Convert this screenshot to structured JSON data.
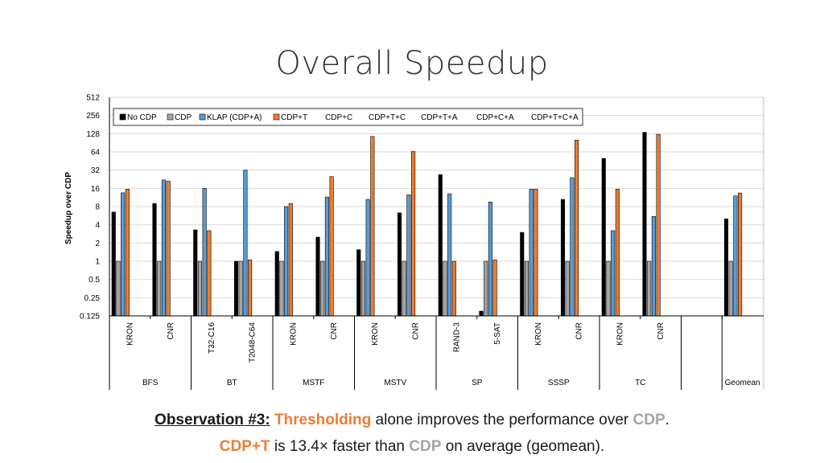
{
  "slide": {
    "title": "Overall Speedup",
    "observation_label": "Observation #3:",
    "line1_highlight": "Thresholding",
    "line1_middle": " alone improves the performance over ",
    "line1_gray": "CDP",
    "line1_end": ".",
    "line2_highlight": "CDP+T",
    "line2_middle": " is 13.4× faster than ",
    "line2_gray": "CDP",
    "line2_end": " on average (geomean)."
  },
  "colors": {
    "No CDP": "#000000",
    "CDP": "#a5a5a5",
    "KLAP (CDP+A)": "#5b9bd5",
    "CDP+T": "#ed7d31"
  },
  "chart_data": {
    "type": "bar",
    "ylabel": "Speedup over CDP",
    "yscale": "log2",
    "ylim": [
      0.125,
      512
    ],
    "yticks": [
      "512",
      "256",
      "128",
      "64",
      "32",
      "16",
      "8",
      "4",
      "2",
      "1",
      "0.5",
      "0.25",
      "0.125"
    ],
    "legend": [
      "No CDP",
      "CDP",
      "KLAP (CDP+A)",
      "CDP+T",
      "CDP+C",
      "CDP+T+C",
      "CDP+T+A",
      "CDP+C+A",
      "CDP+T+C+A"
    ],
    "legend_position": "top-left",
    "grid": true,
    "categories": [
      "KRON",
      "CNR",
      "T32-C16",
      "T2048-C64",
      "KRON",
      "CNR",
      "KRON",
      "CNR",
      "RAND-3",
      "5-SAT",
      "KRON",
      "CNR",
      "KRON",
      "CNR",
      "",
      "Geomean"
    ],
    "groups": [
      {
        "name": "BFS",
        "span": 2
      },
      {
        "name": "BT",
        "span": 2
      },
      {
        "name": "MSTF",
        "span": 2
      },
      {
        "name": "MSTV",
        "span": 2
      },
      {
        "name": "SP",
        "span": 2
      },
      {
        "name": "SSSP",
        "span": 2
      },
      {
        "name": "TC",
        "span": 2
      },
      {
        "name": "",
        "span": 1
      },
      {
        "name": "",
        "span": 1
      }
    ],
    "series": [
      {
        "name": "No CDP",
        "values": [
          6.5,
          9,
          3.3,
          1,
          1.45,
          2.5,
          1.55,
          6.3,
          27,
          0.15,
          3,
          10.5,
          50,
          135,
          null,
          5
        ]
      },
      {
        "name": "CDP",
        "values": [
          1,
          1,
          1,
          1,
          1,
          1,
          1,
          1,
          1,
          1,
          1,
          1,
          1,
          1,
          null,
          1
        ]
      },
      {
        "name": "KLAP (CDP+A)",
        "values": [
          13.5,
          22,
          16,
          32,
          8,
          11.5,
          10.5,
          12.5,
          13,
          9.5,
          15.5,
          24,
          3.2,
          5.5,
          null,
          12
        ]
      },
      {
        "name": "CDP+T",
        "values": [
          15.5,
          21,
          3.2,
          1.05,
          9,
          25,
          115,
          65,
          1,
          1.05,
          15.5,
          100,
          15.5,
          125,
          null,
          13.4
        ]
      }
    ]
  }
}
